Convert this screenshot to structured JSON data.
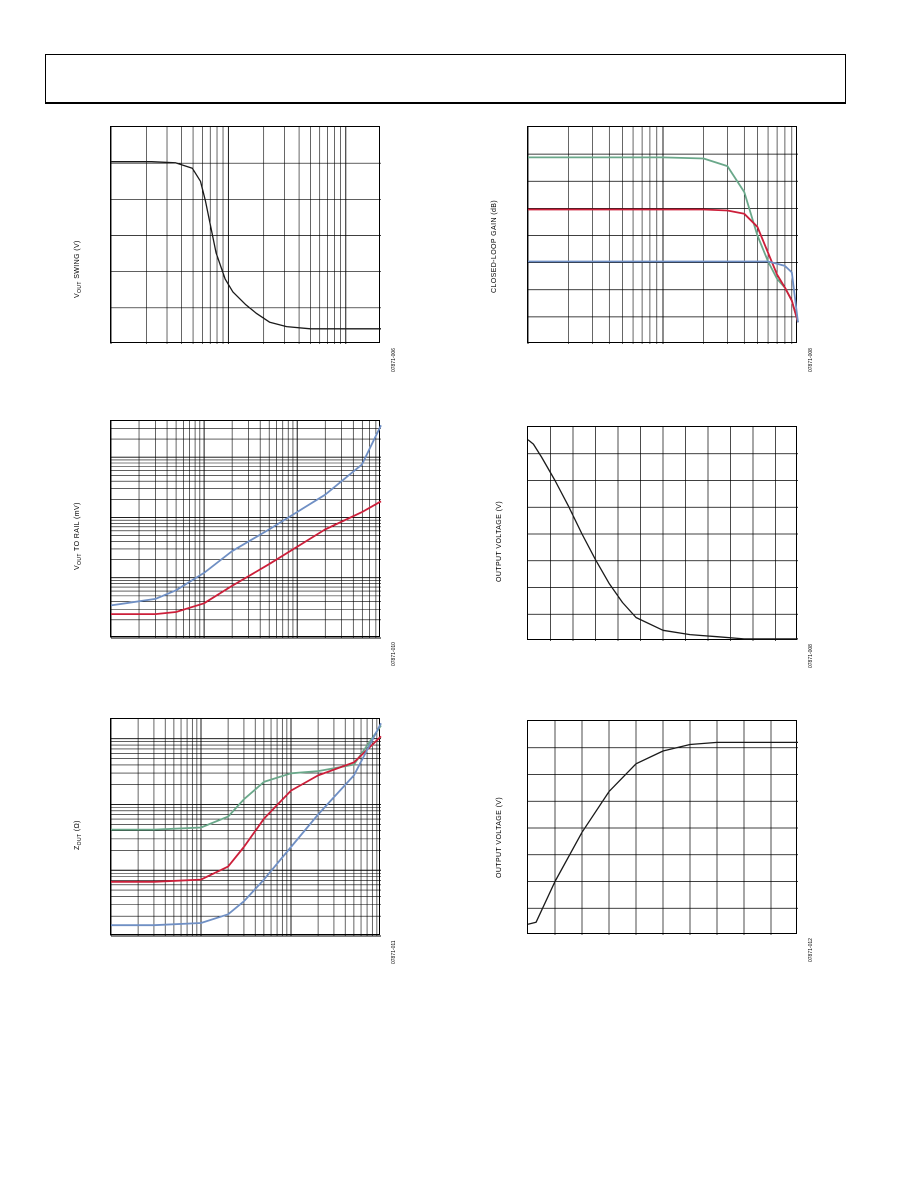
{
  "page": {
    "header": ""
  },
  "charts": [
    {
      "id": "c1",
      "ylabel_main": "V",
      "ylabel_sub": "OUT",
      "ylabel_rest": " SWING (V)",
      "figure_id": "07871-006"
    },
    {
      "id": "c2",
      "ylabel_main": "",
      "ylabel_sub": "",
      "ylabel_rest": "CLOSED-LOOP GAIN (dB)",
      "figure_id": "07871-008"
    },
    {
      "id": "c3",
      "ylabel_main": "V",
      "ylabel_sub": "OUT",
      "ylabel_rest": " TO RAIL (mV)",
      "figure_id": "07871-010"
    },
    {
      "id": "c4",
      "ylabel_main": "",
      "ylabel_sub": "",
      "ylabel_rest": "OUTPUT VOLTAGE (V)",
      "figure_id": "07871-008"
    },
    {
      "id": "c5",
      "ylabel_main": "Z",
      "ylabel_sub": "OUT",
      "ylabel_rest": " (Ω)",
      "figure_id": "07871-011"
    },
    {
      "id": "c6",
      "ylabel_main": "",
      "ylabel_sub": "",
      "ylabel_rest": "OUTPUT VOLTAGE (V)",
      "figure_id": "07871-012"
    }
  ],
  "chart_data": [
    {
      "type": "line",
      "x_scale": "log",
      "x": [
        1,
        2,
        3,
        4,
        4.6,
        5,
        6,
        7,
        8,
        10,
        12,
        15,
        20,
        30,
        50,
        100
      ],
      "series": [
        {
          "color": "#1a1a1a",
          "values": [
            0.84,
            0.84,
            0.835,
            0.81,
            0.75,
            0.66,
            0.42,
            0.3,
            0.24,
            0.18,
            0.14,
            0.1,
            0.08,
            0.07,
            0.07,
            0.07
          ]
        }
      ],
      "ylim": [
        0,
        1
      ],
      "grid": true
    },
    {
      "type": "line",
      "x_scale": "log",
      "x": [
        1,
        5,
        10,
        20,
        30,
        40,
        50,
        60,
        70,
        80,
        90,
        100
      ],
      "series": [
        {
          "color": "#6aa88a",
          "values": [
            0.86,
            0.86,
            0.86,
            0.855,
            0.82,
            0.7,
            0.5,
            0.38,
            0.3,
            0.26,
            0.2,
            0.1
          ]
        },
        {
          "color": "#cc1f3a",
          "values": [
            0.62,
            0.62,
            0.62,
            0.62,
            0.615,
            0.6,
            0.54,
            0.42,
            0.32,
            0.26,
            0.2,
            0.1
          ]
        },
        {
          "color": "#6f8fc4",
          "values": [
            0.38,
            0.38,
            0.38,
            0.38,
            0.38,
            0.38,
            0.38,
            0.38,
            0.37,
            0.36,
            0.33,
            0.1
          ]
        }
      ],
      "ylim": [
        0,
        1
      ],
      "grid": true
    },
    {
      "type": "line",
      "x_scale": "log",
      "x": [
        1,
        3,
        5,
        10,
        20,
        50,
        100,
        200,
        500,
        800
      ],
      "series": [
        {
          "color": "#6f8fc4",
          "values": [
            0.15,
            0.18,
            0.22,
            0.3,
            0.4,
            0.5,
            0.58,
            0.66,
            0.8,
            0.98
          ]
        },
        {
          "color": "#cc1f3a",
          "values": [
            0.11,
            0.11,
            0.12,
            0.16,
            0.24,
            0.34,
            0.42,
            0.5,
            0.58,
            0.63
          ]
        }
      ],
      "ylim": [
        0,
        1
      ],
      "grid": true
    },
    {
      "type": "line",
      "x": [
        0,
        0.02,
        0.05,
        0.1,
        0.15,
        0.2,
        0.25,
        0.3,
        0.35,
        0.4,
        0.5,
        0.6,
        0.7,
        0.8,
        1.0
      ],
      "series": [
        {
          "color": "#1a1a1a",
          "values": [
            0.94,
            0.92,
            0.86,
            0.75,
            0.63,
            0.5,
            0.38,
            0.27,
            0.18,
            0.11,
            0.05,
            0.03,
            0.02,
            0.01,
            0.01
          ]
        }
      ],
      "ylim": [
        0,
        1
      ],
      "grid": true
    },
    {
      "type": "line",
      "x_scale": "log",
      "x": [
        1,
        3,
        10,
        20,
        30,
        50,
        100,
        200,
        500,
        1000
      ],
      "series": [
        {
          "color": "#6aa88a",
          "values": [
            0.49,
            0.49,
            0.5,
            0.55,
            0.63,
            0.71,
            0.75,
            0.76,
            0.79,
            0.97
          ]
        },
        {
          "color": "#cc1f3a",
          "values": [
            0.25,
            0.25,
            0.26,
            0.32,
            0.41,
            0.54,
            0.67,
            0.74,
            0.8,
            0.92
          ]
        },
        {
          "color": "#6f8fc4",
          "values": [
            0.05,
            0.05,
            0.06,
            0.1,
            0.16,
            0.26,
            0.41,
            0.56,
            0.74,
            0.98
          ]
        }
      ],
      "ylim": [
        0,
        1
      ],
      "grid": true
    },
    {
      "type": "line",
      "x": [
        0,
        0.03,
        0.1,
        0.2,
        0.3,
        0.4,
        0.5,
        0.6,
        0.7,
        0.8,
        0.9,
        1.0
      ],
      "series": [
        {
          "color": "#1a1a1a",
          "values": [
            0.05,
            0.06,
            0.25,
            0.48,
            0.67,
            0.8,
            0.86,
            0.89,
            0.9,
            0.9,
            0.9,
            0.9
          ]
        }
      ],
      "ylim": [
        0,
        1
      ],
      "grid": true
    }
  ]
}
